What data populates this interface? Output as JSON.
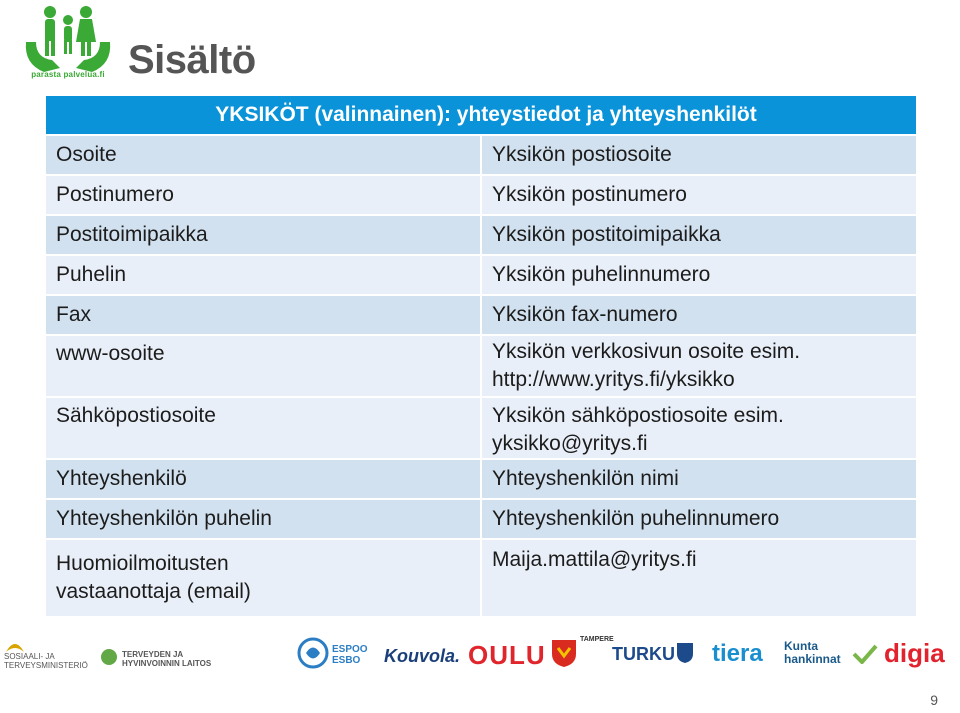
{
  "title": "Sisältö",
  "logo": {
    "text": "parasta palvelua.fi"
  },
  "table": {
    "header": "YKSIKÖT (valinnainen): yhteystiedot ja yhteyshenkilöt",
    "rows": [
      {
        "label": "Osoite",
        "value": "Yksikön postiosoite"
      },
      {
        "label": "Postinumero",
        "value": "Yksikön postinumero"
      },
      {
        "label": "Postitoimipaikka",
        "value": "Yksikön postitoimipaikka"
      },
      {
        "label": "Puhelin",
        "value": "Yksikön puhelinnumero"
      },
      {
        "label": "Fax",
        "value": "Yksikön fax-numero"
      },
      {
        "label": "www-osoite",
        "value_line1": "Yksikön verkkosivun osoite esim.",
        "value_line2": "http://www.yritys.fi/yksikko"
      },
      {
        "label": "Sähköpostiosoite",
        "value": "Yksikön sähköpostiosoite esim. yksikko@yritys.fi"
      }
    ],
    "contacts": [
      {
        "label": "Yhteyshenkilö",
        "value": "Yhteyshenkilön nimi"
      },
      {
        "label": "Yhteyshenkilön puhelin",
        "value": "Yhteyshenkilön puhelinnumero"
      },
      {
        "label_line1": "Huomioilmoitusten",
        "label_line2": "vastaanottaja (email)",
        "value": "Maija.mattila@yritys.fi"
      }
    ]
  },
  "footer_logos": {
    "stm": [
      "SOSIAALI- JA",
      "TERVEYSMINISTERIÖ"
    ],
    "thl": [
      "TERVEYDEN JA",
      "HYVINVOINNIN LAITOS"
    ],
    "espoo": [
      "ESPOO",
      "ESBO"
    ],
    "kouvola": "Kouvola.",
    "oulu": "OULU",
    "tampere": "TAMPERE",
    "turku": "TURKU",
    "tiera": "tiera",
    "kuntahankinnat": [
      "Kunta",
      "hankinnat"
    ],
    "digia": "digia"
  },
  "page_number": "9",
  "colors": {
    "header_blue": "#0a93d8",
    "row_dark": "#d2e1ef",
    "row_light": "#e9eff8",
    "logo_green": "#3aa935"
  }
}
